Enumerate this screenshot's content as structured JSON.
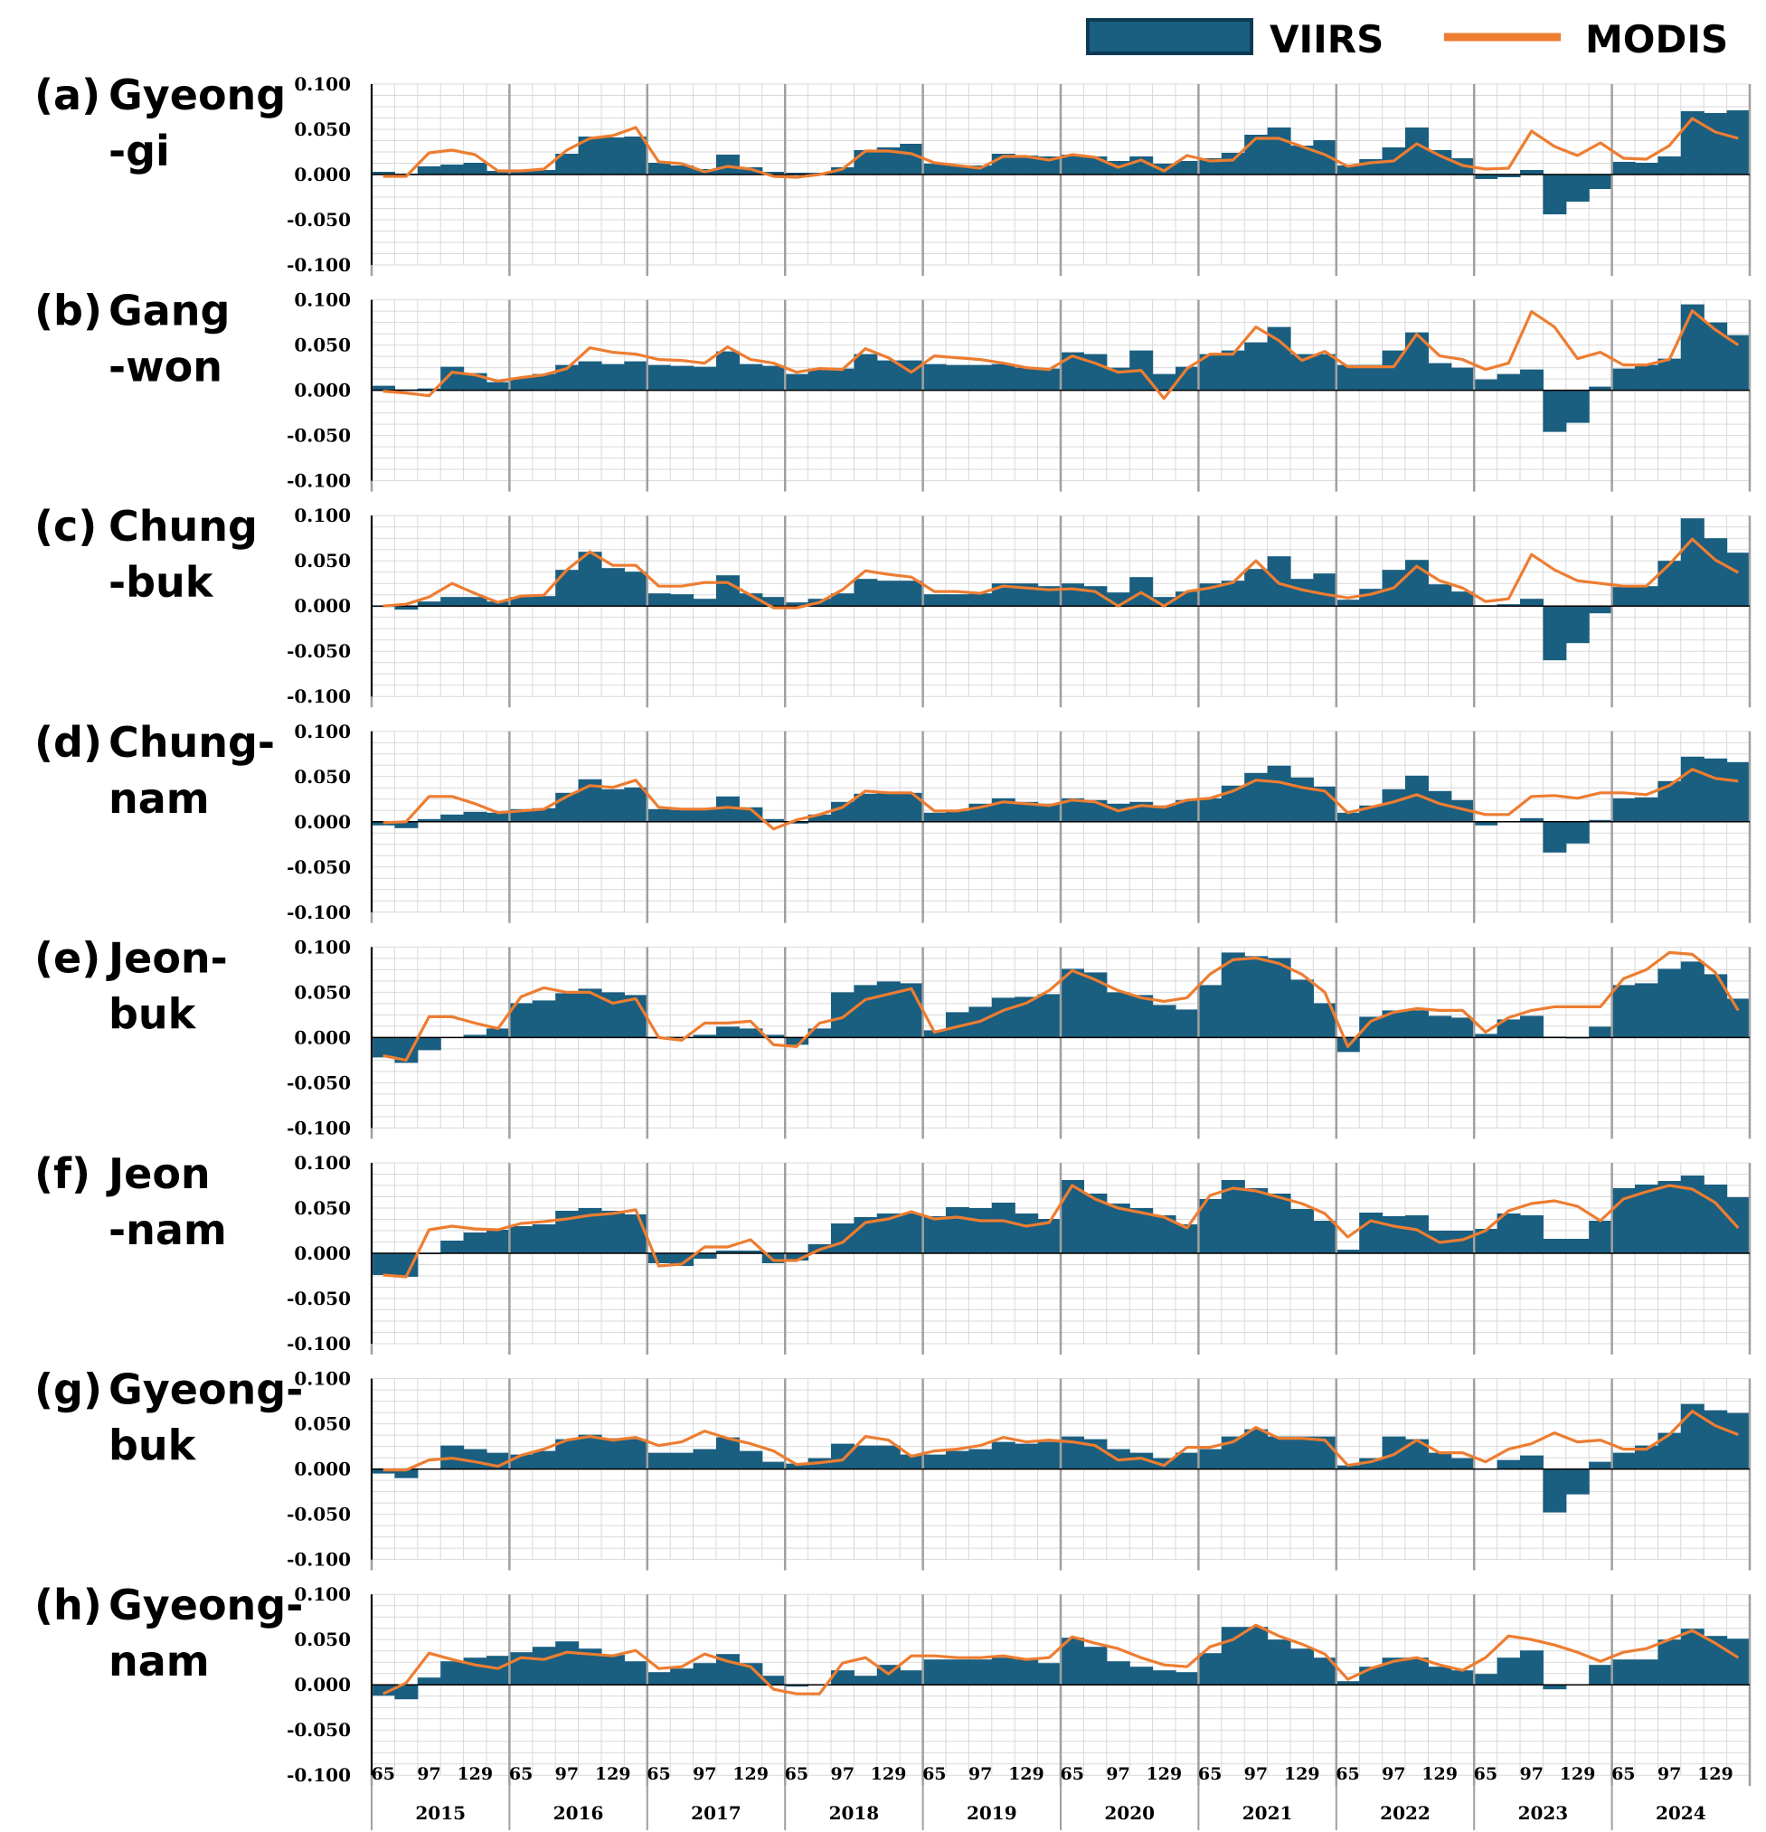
{
  "legend": {
    "bar_label": "VIIRS",
    "line_label": "MODIS"
  },
  "colors": {
    "bar": "#1A5E80",
    "bar_edge": "#0D3A55",
    "line": "#ED7D31",
    "grid": "#D9D9D9",
    "year_grid": "#A0A0A0"
  },
  "chart_data": {
    "type": "bar",
    "y_tick_labels": [
      "0.100",
      "0.050",
      "0.000",
      "-0.050",
      "-0.100"
    ],
    "ylim": [
      -0.1,
      0.1
    ],
    "years": [
      "2015",
      "2016",
      "2017",
      "2018",
      "2019",
      "2020",
      "2021",
      "2022",
      "2023",
      "2024"
    ],
    "x_tick_labels": [
      "65",
      "97",
      "129"
    ],
    "series_names": [
      "VIIRS",
      "MODIS"
    ],
    "panels": [
      {
        "label": "(a)",
        "name_line1": "Gyeong",
        "name_line2": "-gi",
        "viirs": [
          0.003,
          0.001,
          0.009,
          0.011,
          0.013,
          0.004,
          0.004,
          0.005,
          0.023,
          0.042,
          0.041,
          0.042,
          0.013,
          0.01,
          0.006,
          0.022,
          0.008,
          0.003,
          0.002,
          0.002,
          0.008,
          0.027,
          0.03,
          0.034,
          0.012,
          0.01,
          0.01,
          0.023,
          0.021,
          0.02,
          0.022,
          0.02,
          0.015,
          0.02,
          0.012,
          0.015,
          0.018,
          0.024,
          0.044,
          0.052,
          0.032,
          0.038,
          0.01,
          0.017,
          0.03,
          0.052,
          0.027,
          0.018,
          -0.005,
          -0.003,
          0.005,
          -0.044,
          -0.03,
          -0.016,
          0.014,
          0.013,
          0.02,
          0.07,
          0.068,
          0.071
        ],
        "modis": [
          -0.002,
          -0.002,
          0.024,
          0.027,
          0.022,
          0.004,
          0.004,
          0.006,
          0.027,
          0.04,
          0.043,
          0.052,
          0.014,
          0.012,
          0.003,
          0.009,
          0.006,
          -0.002,
          -0.003,
          0.0,
          0.006,
          0.026,
          0.026,
          0.023,
          0.013,
          0.01,
          0.007,
          0.02,
          0.02,
          0.016,
          0.022,
          0.019,
          0.008,
          0.016,
          0.004,
          0.021,
          0.015,
          0.016,
          0.04,
          0.04,
          0.031,
          0.022,
          0.009,
          0.013,
          0.015,
          0.034,
          0.021,
          0.01,
          0.006,
          0.007,
          0.048,
          0.031,
          0.021,
          0.035,
          0.018,
          0.017,
          0.032,
          0.062,
          0.047,
          0.04
        ]
      },
      {
        "label": "(b)",
        "name_line1": "Gang",
        "name_line2": "-won",
        "viirs": [
          0.005,
          0.001,
          0.002,
          0.026,
          0.019,
          0.009,
          0.014,
          0.018,
          0.028,
          0.032,
          0.029,
          0.032,
          0.028,
          0.027,
          0.026,
          0.043,
          0.029,
          0.027,
          0.018,
          0.024,
          0.024,
          0.04,
          0.033,
          0.033,
          0.029,
          0.028,
          0.028,
          0.029,
          0.025,
          0.024,
          0.042,
          0.04,
          0.025,
          0.044,
          0.018,
          0.026,
          0.04,
          0.044,
          0.053,
          0.07,
          0.04,
          0.04,
          0.028,
          0.028,
          0.044,
          0.064,
          0.03,
          0.025,
          0.012,
          0.018,
          0.023,
          -0.046,
          -0.036,
          0.004,
          0.024,
          0.028,
          0.035,
          0.095,
          0.075,
          0.061
        ],
        "modis": [
          -0.001,
          -0.003,
          -0.006,
          0.02,
          0.017,
          0.01,
          0.014,
          0.017,
          0.024,
          0.047,
          0.042,
          0.04,
          0.034,
          0.033,
          0.03,
          0.048,
          0.034,
          0.03,
          0.02,
          0.024,
          0.023,
          0.046,
          0.036,
          0.02,
          0.038,
          0.036,
          0.034,
          0.03,
          0.025,
          0.023,
          0.038,
          0.03,
          0.02,
          0.022,
          -0.009,
          0.024,
          0.04,
          0.04,
          0.07,
          0.055,
          0.033,
          0.043,
          0.026,
          0.026,
          0.026,
          0.062,
          0.038,
          0.034,
          0.023,
          0.03,
          0.087,
          0.07,
          0.035,
          0.042,
          0.028,
          0.028,
          0.034,
          0.088,
          0.067,
          0.05
        ]
      },
      {
        "label": "(c)",
        "name_line1": "Chung",
        "name_line2": "-buk",
        "viirs": [
          -0.001,
          -0.004,
          0.005,
          0.01,
          0.01,
          0.005,
          0.01,
          0.011,
          0.04,
          0.06,
          0.042,
          0.038,
          0.014,
          0.013,
          0.008,
          0.034,
          0.014,
          0.01,
          0.004,
          0.008,
          0.014,
          0.03,
          0.028,
          0.028,
          0.013,
          0.013,
          0.014,
          0.025,
          0.025,
          0.022,
          0.025,
          0.022,
          0.015,
          0.032,
          0.01,
          0.016,
          0.025,
          0.028,
          0.041,
          0.055,
          0.03,
          0.036,
          0.007,
          0.019,
          0.04,
          0.051,
          0.024,
          0.016,
          0.001,
          0.002,
          0.008,
          -0.06,
          -0.041,
          -0.008,
          0.021,
          0.022,
          0.05,
          0.097,
          0.075,
          0.059
        ],
        "modis": [
          0.0,
          0.002,
          0.01,
          0.025,
          0.014,
          0.004,
          0.011,
          0.012,
          0.04,
          0.06,
          0.045,
          0.045,
          0.022,
          0.022,
          0.026,
          0.026,
          0.012,
          -0.002,
          -0.002,
          0.004,
          0.018,
          0.039,
          0.035,
          0.032,
          0.016,
          0.016,
          0.014,
          0.022,
          0.02,
          0.018,
          0.019,
          0.016,
          0.0,
          0.015,
          0.0,
          0.016,
          0.02,
          0.026,
          0.05,
          0.025,
          0.018,
          0.013,
          0.009,
          0.013,
          0.02,
          0.044,
          0.028,
          0.02,
          0.005,
          0.008,
          0.057,
          0.04,
          0.028,
          0.025,
          0.022,
          0.022,
          0.046,
          0.074,
          0.051,
          0.037
        ]
      },
      {
        "label": "(d)",
        "name_line1": "Chung-",
        "name_line2": "nam",
        "viirs": [
          -0.004,
          -0.007,
          0.003,
          0.008,
          0.011,
          0.01,
          0.014,
          0.015,
          0.032,
          0.047,
          0.036,
          0.038,
          0.014,
          0.013,
          0.014,
          0.028,
          0.016,
          0.003,
          -0.002,
          0.008,
          0.022,
          0.031,
          0.032,
          0.032,
          0.01,
          0.012,
          0.02,
          0.026,
          0.022,
          0.02,
          0.026,
          0.024,
          0.02,
          0.022,
          0.018,
          0.024,
          0.026,
          0.04,
          0.054,
          0.062,
          0.049,
          0.039,
          0.01,
          0.018,
          0.036,
          0.051,
          0.034,
          0.024,
          -0.004,
          0.0,
          0.004,
          -0.034,
          -0.024,
          0.002,
          0.026,
          0.027,
          0.045,
          0.072,
          0.07,
          0.066
        ],
        "modis": [
          -0.001,
          0.0,
          0.028,
          0.028,
          0.02,
          0.01,
          0.012,
          0.014,
          0.028,
          0.04,
          0.038,
          0.046,
          0.016,
          0.014,
          0.014,
          0.016,
          0.014,
          -0.008,
          0.002,
          0.008,
          0.016,
          0.034,
          0.032,
          0.032,
          0.012,
          0.012,
          0.016,
          0.022,
          0.02,
          0.018,
          0.024,
          0.022,
          0.012,
          0.018,
          0.016,
          0.024,
          0.026,
          0.034,
          0.046,
          0.044,
          0.038,
          0.034,
          0.01,
          0.016,
          0.022,
          0.03,
          0.02,
          0.014,
          0.008,
          0.008,
          0.028,
          0.029,
          0.026,
          0.032,
          0.032,
          0.03,
          0.04,
          0.058,
          0.048,
          0.045
        ]
      },
      {
        "label": "(e)",
        "name_line1": "Jeon-",
        "name_line2": "buk",
        "viirs": [
          -0.022,
          -0.028,
          -0.014,
          0.0,
          0.003,
          0.01,
          0.038,
          0.041,
          0.049,
          0.054,
          0.05,
          0.047,
          -0.001,
          0.0,
          0.003,
          0.012,
          0.01,
          0.003,
          -0.008,
          0.01,
          0.05,
          0.058,
          0.062,
          0.06,
          0.008,
          0.028,
          0.034,
          0.044,
          0.045,
          0.048,
          0.076,
          0.072,
          0.05,
          0.047,
          0.036,
          0.031,
          0.058,
          0.094,
          0.09,
          0.088,
          0.064,
          0.038,
          -0.016,
          0.023,
          0.03,
          0.03,
          0.024,
          0.022,
          0.004,
          0.02,
          0.024,
          0.001,
          -0.001,
          0.012,
          0.058,
          0.06,
          0.076,
          0.084,
          0.07,
          0.043
        ],
        "modis": [
          -0.02,
          -0.025,
          0.023,
          0.023,
          0.016,
          0.01,
          0.045,
          0.055,
          0.05,
          0.05,
          0.038,
          0.043,
          0.0,
          -0.003,
          0.016,
          0.016,
          0.018,
          -0.008,
          -0.01,
          0.016,
          0.022,
          0.042,
          0.048,
          0.054,
          0.006,
          0.012,
          0.018,
          0.03,
          0.038,
          0.052,
          0.074,
          0.064,
          0.052,
          0.044,
          0.04,
          0.044,
          0.07,
          0.086,
          0.088,
          0.082,
          0.07,
          0.05,
          -0.01,
          0.018,
          0.028,
          0.032,
          0.03,
          0.03,
          0.006,
          0.022,
          0.03,
          0.034,
          0.034,
          0.034,
          0.065,
          0.075,
          0.094,
          0.092,
          0.072,
          0.03
        ]
      },
      {
        "label": "(f)",
        "name_line1": "Jeon",
        "name_line2": "-nam",
        "viirs": [
          -0.024,
          -0.026,
          -0.001,
          0.014,
          0.023,
          0.026,
          0.03,
          0.032,
          0.047,
          0.05,
          0.047,
          0.043,
          -0.011,
          -0.014,
          -0.006,
          0.003,
          0.003,
          -0.011,
          -0.008,
          0.01,
          0.033,
          0.04,
          0.044,
          0.044,
          0.041,
          0.051,
          0.05,
          0.056,
          0.044,
          0.038,
          0.081,
          0.066,
          0.055,
          0.05,
          0.042,
          0.032,
          0.06,
          0.081,
          0.072,
          0.066,
          0.049,
          0.036,
          0.004,
          0.045,
          0.041,
          0.042,
          0.025,
          0.025,
          0.027,
          0.044,
          0.042,
          0.016,
          0.016,
          0.036,
          0.072,
          0.076,
          0.08,
          0.086,
          0.076,
          0.062
        ],
        "modis": [
          -0.024,
          -0.026,
          0.026,
          0.03,
          0.027,
          0.026,
          0.033,
          0.035,
          0.038,
          0.042,
          0.044,
          0.048,
          -0.014,
          -0.012,
          0.007,
          0.007,
          0.015,
          -0.008,
          -0.008,
          0.004,
          0.012,
          0.034,
          0.038,
          0.046,
          0.038,
          0.04,
          0.036,
          0.036,
          0.03,
          0.034,
          0.075,
          0.06,
          0.05,
          0.045,
          0.04,
          0.028,
          0.064,
          0.072,
          0.069,
          0.062,
          0.055,
          0.044,
          0.018,
          0.036,
          0.03,
          0.026,
          0.012,
          0.015,
          0.025,
          0.047,
          0.055,
          0.058,
          0.052,
          0.036,
          0.06,
          0.068,
          0.075,
          0.071,
          0.056,
          0.028
        ]
      },
      {
        "label": "(g)",
        "name_line1": "Gyeong-",
        "name_line2": "buk",
        "viirs": [
          -0.005,
          -0.01,
          0.0,
          0.026,
          0.022,
          0.018,
          0.016,
          0.02,
          0.033,
          0.038,
          0.034,
          0.033,
          0.018,
          0.018,
          0.022,
          0.035,
          0.02,
          0.008,
          0.006,
          0.012,
          0.028,
          0.026,
          0.026,
          0.016,
          0.016,
          0.02,
          0.022,
          0.03,
          0.028,
          0.03,
          0.036,
          0.033,
          0.022,
          0.018,
          0.012,
          0.018,
          0.022,
          0.036,
          0.044,
          0.036,
          0.036,
          0.036,
          0.004,
          0.012,
          0.036,
          0.033,
          0.018,
          0.012,
          0.0,
          0.01,
          0.015,
          -0.048,
          -0.028,
          0.008,
          0.018,
          0.026,
          0.04,
          0.072,
          0.065,
          0.062
        ],
        "modis": [
          -0.001,
          -0.001,
          0.01,
          0.012,
          0.008,
          0.003,
          0.015,
          0.022,
          0.032,
          0.036,
          0.032,
          0.035,
          0.026,
          0.03,
          0.042,
          0.034,
          0.028,
          0.02,
          0.005,
          0.007,
          0.01,
          0.036,
          0.032,
          0.014,
          0.02,
          0.022,
          0.026,
          0.035,
          0.03,
          0.032,
          0.03,
          0.026,
          0.01,
          0.012,
          0.004,
          0.024,
          0.024,
          0.03,
          0.046,
          0.034,
          0.034,
          0.032,
          0.004,
          0.008,
          0.016,
          0.032,
          0.018,
          0.018,
          0.008,
          0.022,
          0.028,
          0.04,
          0.03,
          0.032,
          0.022,
          0.022,
          0.038,
          0.064,
          0.048,
          0.038
        ]
      },
      {
        "label": "(h)",
        "name_line1": "Gyeong-",
        "name_line2": "nam",
        "viirs": [
          -0.012,
          -0.016,
          0.008,
          0.026,
          0.03,
          0.032,
          0.036,
          0.042,
          0.048,
          0.04,
          0.033,
          0.026,
          0.014,
          0.018,
          0.024,
          0.034,
          0.024,
          0.01,
          -0.002,
          0.0,
          0.016,
          0.01,
          0.022,
          0.016,
          0.028,
          0.028,
          0.028,
          0.03,
          0.028,
          0.024,
          0.052,
          0.042,
          0.026,
          0.02,
          0.016,
          0.014,
          0.035,
          0.064,
          0.064,
          0.05,
          0.04,
          0.03,
          0.004,
          0.02,
          0.03,
          0.03,
          0.02,
          0.016,
          0.012,
          0.03,
          0.038,
          -0.005,
          0.0,
          0.022,
          0.028,
          0.028,
          0.05,
          0.062,
          0.054,
          0.051
        ],
        "modis": [
          -0.01,
          0.002,
          0.035,
          0.028,
          0.022,
          0.018,
          0.03,
          0.028,
          0.036,
          0.034,
          0.032,
          0.038,
          0.018,
          0.02,
          0.034,
          0.026,
          0.02,
          -0.005,
          -0.01,
          -0.01,
          0.024,
          0.03,
          0.012,
          0.032,
          0.032,
          0.03,
          0.03,
          0.032,
          0.028,
          0.03,
          0.053,
          0.046,
          0.04,
          0.03,
          0.022,
          0.02,
          0.042,
          0.05,
          0.066,
          0.054,
          0.045,
          0.034,
          0.006,
          0.018,
          0.026,
          0.03,
          0.022,
          0.016,
          0.03,
          0.054,
          0.05,
          0.044,
          0.036,
          0.026,
          0.036,
          0.04,
          0.05,
          0.06,
          0.046,
          0.03
        ]
      }
    ]
  }
}
